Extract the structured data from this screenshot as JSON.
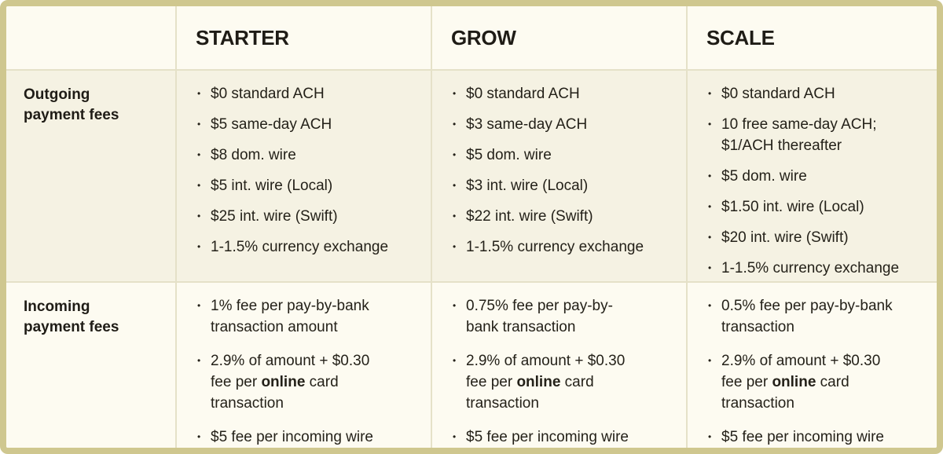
{
  "glyphs": {
    "bullet": "•"
  },
  "colors": {
    "outer_border": "#cfc78f",
    "divider": "#e5e1c8",
    "row_band_light": "#fdfbf1",
    "row_band_dark": "#f5f2e3",
    "text": "#242119"
  },
  "table": {
    "header": {
      "corner": "",
      "columns": [
        "STARTER",
        "GROW",
        "SCALE"
      ]
    },
    "rows": [
      {
        "label": "Outgoing payment fees",
        "cells": [
          {
            "items": [
              {
                "text": "$0 standard ACH"
              },
              {
                "text": "$5 same-day ACH"
              },
              {
                "text": "$8 dom. wire"
              },
              {
                "text": "$5 int. wire (Local)"
              },
              {
                "text": "$25 int. wire (Swift)"
              },
              {
                "text": "1-1.5% currency exchange"
              }
            ]
          },
          {
            "items": [
              {
                "text": "$0 standard ACH"
              },
              {
                "text": "$3 same-day ACH"
              },
              {
                "text": "$5 dom. wire"
              },
              {
                "text": "$3 int. wire (Local)"
              },
              {
                "text": "$22 int. wire (Swift)"
              },
              {
                "text": "1-1.5% currency exchange"
              }
            ]
          },
          {
            "items": [
              {
                "text": "$0 standard ACH"
              },
              {
                "text": "10 free same-day ACH; $1/ACH thereafter"
              },
              {
                "text": "$5 dom. wire"
              },
              {
                "text": "$1.50 int. wire (Local)"
              },
              {
                "text": "$20 int. wire (Swift)"
              },
              {
                "text": "1-1.5% currency exchange"
              }
            ]
          }
        ]
      },
      {
        "label": "Incoming payment fees",
        "cells": [
          {
            "items": [
              {
                "text": "1% fee per pay-by-bank transaction amount"
              },
              {
                "pre": "2.9% of amount + $0.30 fee per ",
                "bold": "online",
                "post": " card transaction"
              },
              {
                "text": "$5 fee per incoming wire"
              }
            ]
          },
          {
            "items": [
              {
                "text": "0.75% fee per pay-by-bank transaction"
              },
              {
                "pre": "2.9% of amount + $0.30 fee per ",
                "bold": "online",
                "post": " card transaction"
              },
              {
                "text": "$5 fee per incoming wire"
              }
            ]
          },
          {
            "items": [
              {
                "text": "0.5% fee per pay-by-bank transaction"
              },
              {
                "pre": "2.9% of amount + $0.30 fee per ",
                "bold": "online",
                "post": " card transaction"
              },
              {
                "text": "$5 fee per incoming wire"
              }
            ]
          }
        ]
      }
    ]
  }
}
